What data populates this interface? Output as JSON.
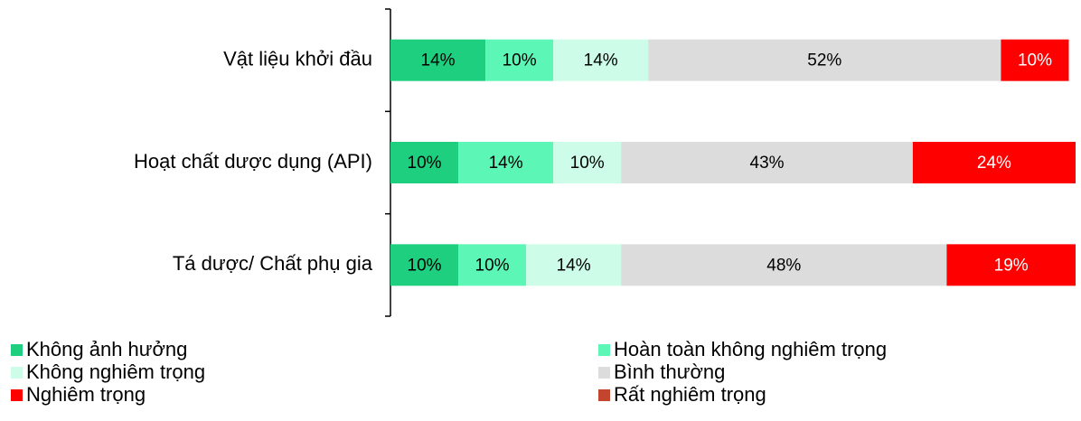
{
  "chart_data": {
    "type": "bar",
    "orientation": "horizontal",
    "stacked": true,
    "categories": [
      "Vật liệu khởi đầu",
      "Hoạt chất dược dụng (API)",
      "Tá dược/ Chất phụ gia"
    ],
    "xlim": [
      0,
      101
    ],
    "series": [
      {
        "name": "Không ảnh hưởng",
        "color": "#1ecf80",
        "label_color": "#000",
        "values": [
          14,
          10,
          10
        ],
        "value_labels": [
          "14%",
          "10%",
          "10%"
        ]
      },
      {
        "name": "Hoàn toàn không nghiêm trọng",
        "color": "#5cf7b6",
        "label_color": "#000",
        "values": [
          10,
          14,
          10
        ],
        "value_labels": [
          "10%",
          "14%",
          "10%"
        ]
      },
      {
        "name": "Không nghiêm trọng",
        "color": "#cdfce8",
        "label_color": "#000",
        "values": [
          14,
          10,
          14
        ],
        "value_labels": [
          "14%",
          "10%",
          "14%"
        ]
      },
      {
        "name": "Bình thường",
        "color": "#dcdcdc",
        "label_color": "#000",
        "values": [
          52,
          43,
          48
        ],
        "value_labels": [
          "52%",
          "43%",
          "48%"
        ]
      },
      {
        "name": "Nghiêm trọng",
        "color": "#ff0000",
        "label_color": "#fff",
        "values": [
          10,
          24,
          19
        ],
        "value_labels": [
          "10%",
          "24%",
          "19%"
        ]
      },
      {
        "name": "Rất nghiêm trọng",
        "color": "#c4452e",
        "label_color": "#fff",
        "values": [
          0,
          0,
          0
        ]
      }
    ]
  }
}
